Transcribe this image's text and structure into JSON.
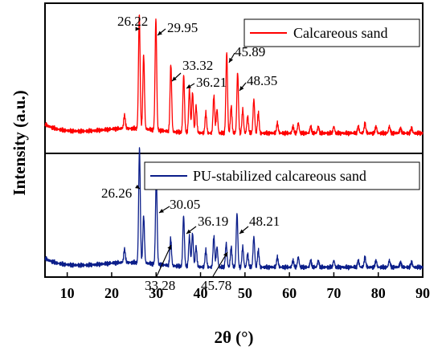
{
  "chart_data": {
    "type": "line",
    "xlabel": "2θ (°)",
    "ylabel": "Intensity (a.u.)",
    "xlim": [
      5,
      90
    ],
    "x_ticks": [
      "10",
      "20",
      "30",
      "40",
      "50",
      "60",
      "70",
      "80",
      "90"
    ],
    "x_tick_values": [
      10,
      20,
      30,
      40,
      50,
      60,
      70,
      80,
      90
    ],
    "y_ticks_shown": false,
    "grid": false,
    "panels": [
      {
        "name": "Calcareous sand",
        "color": "#ff0000",
        "legend_position": "top-right",
        "baseline": 1.0,
        "peaks": [
          {
            "x": 22.9,
            "y": 4
          },
          {
            "x": 26.22,
            "y": 34
          },
          {
            "x": 27.2,
            "y": 22
          },
          {
            "x": 29.95,
            "y": 33
          },
          {
            "x": 33.32,
            "y": 20
          },
          {
            "x": 36.21,
            "y": 17
          },
          {
            "x": 37.5,
            "y": 13
          },
          {
            "x": 38.2,
            "y": 12
          },
          {
            "x": 39.0,
            "y": 8
          },
          {
            "x": 41.2,
            "y": 6
          },
          {
            "x": 43.0,
            "y": 11
          },
          {
            "x": 43.7,
            "y": 7
          },
          {
            "x": 45.89,
            "y": 24
          },
          {
            "x": 46.9,
            "y": 8
          },
          {
            "x": 48.35,
            "y": 18
          },
          {
            "x": 49.5,
            "y": 7
          },
          {
            "x": 50.6,
            "y": 5
          },
          {
            "x": 52.0,
            "y": 10
          },
          {
            "x": 53.0,
            "y": 6
          },
          {
            "x": 57.3,
            "y": 3
          },
          {
            "x": 60.8,
            "y": 2
          },
          {
            "x": 62.0,
            "y": 3
          },
          {
            "x": 64.8,
            "y": 2
          },
          {
            "x": 66.5,
            "y": 2
          },
          {
            "x": 70.0,
            "y": 2
          },
          {
            "x": 75.5,
            "y": 2
          },
          {
            "x": 77.0,
            "y": 3
          },
          {
            "x": 79.5,
            "y": 2
          },
          {
            "x": 82.5,
            "y": 2
          },
          {
            "x": 85.0,
            "y": 1.5
          },
          {
            "x": 87.5,
            "y": 1.5
          }
        ],
        "labels": [
          {
            "text": "26.22",
            "x": 26.22
          },
          {
            "text": "29.95",
            "x": 29.95
          },
          {
            "text": "33.32",
            "x": 33.32
          },
          {
            "text": "36.21",
            "x": 36.21
          },
          {
            "text": "45.89",
            "x": 45.89
          },
          {
            "text": "48.35",
            "x": 48.35
          }
        ]
      },
      {
        "name": "PU-stabilized calcareous sand",
        "color": "#0b1e8a",
        "legend_position": "top-right",
        "baseline": 1.5,
        "peaks": [
          {
            "x": 22.9,
            "y": 4
          },
          {
            "x": 26.26,
            "y": 34
          },
          {
            "x": 27.2,
            "y": 14
          },
          {
            "x": 30.05,
            "y": 26
          },
          {
            "x": 33.28,
            "y": 8
          },
          {
            "x": 36.19,
            "y": 15
          },
          {
            "x": 37.5,
            "y": 9
          },
          {
            "x": 38.2,
            "y": 10
          },
          {
            "x": 39.0,
            "y": 6
          },
          {
            "x": 41.2,
            "y": 5
          },
          {
            "x": 43.0,
            "y": 9
          },
          {
            "x": 43.7,
            "y": 6
          },
          {
            "x": 45.78,
            "y": 7
          },
          {
            "x": 46.9,
            "y": 6
          },
          {
            "x": 48.21,
            "y": 16
          },
          {
            "x": 49.5,
            "y": 6
          },
          {
            "x": 50.6,
            "y": 4
          },
          {
            "x": 52.0,
            "y": 9
          },
          {
            "x": 53.0,
            "y": 5
          },
          {
            "x": 57.3,
            "y": 3
          },
          {
            "x": 60.8,
            "y": 2
          },
          {
            "x": 62.0,
            "y": 3
          },
          {
            "x": 64.8,
            "y": 2
          },
          {
            "x": 66.5,
            "y": 2
          },
          {
            "x": 70.0,
            "y": 2
          },
          {
            "x": 75.5,
            "y": 2
          },
          {
            "x": 77.0,
            "y": 3
          },
          {
            "x": 79.5,
            "y": 2
          },
          {
            "x": 82.5,
            "y": 2
          },
          {
            "x": 85.0,
            "y": 1.5
          },
          {
            "x": 87.5,
            "y": 1.5
          }
        ],
        "labels": [
          {
            "text": "26.26",
            "x": 26.26
          },
          {
            "text": "30.05",
            "x": 30.05
          },
          {
            "text": "36.19",
            "x": 36.19
          },
          {
            "text": "48.21",
            "x": 48.21
          },
          {
            "text": "33.28",
            "x": 33.28
          },
          {
            "text": "45.78",
            "x": 45.78
          }
        ]
      }
    ]
  }
}
